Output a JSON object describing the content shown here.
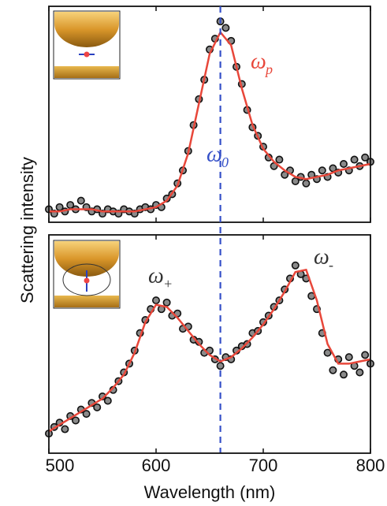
{
  "chart_data": [
    {
      "type": "scatter",
      "xlim": [
        500,
        800
      ],
      "ylim": [
        0,
        1
      ],
      "xticks": [
        500,
        600,
        700,
        800
      ],
      "ylabel": "Scattering intensity",
      "vline": {
        "value": 660,
        "color": "#3550c8"
      },
      "annotations": [
        {
          "text": "ω",
          "sub": "p",
          "color": "#e8473a"
        },
        {
          "text": "ω",
          "sub": "0",
          "color": "#3550c8"
        }
      ],
      "series": [
        {
          "type": "scatter",
          "color": "#8a8a8a",
          "x": [
            500,
            505,
            510,
            515,
            520,
            525,
            530,
            535,
            540,
            545,
            550,
            555,
            560,
            565,
            570,
            575,
            580,
            585,
            590,
            595,
            600,
            605,
            610,
            615,
            620,
            625,
            630,
            635,
            640,
            645,
            650,
            655,
            660,
            665,
            670,
            675,
            680,
            685,
            690,
            695,
            700,
            705,
            710,
            715,
            720,
            725,
            730,
            735,
            740,
            745,
            750,
            755,
            760,
            765,
            770,
            775,
            780,
            785,
            790,
            795,
            800
          ],
          "values": [
            0.06,
            0.04,
            0.07,
            0.05,
            0.08,
            0.06,
            0.1,
            0.07,
            0.05,
            0.06,
            0.04,
            0.06,
            0.05,
            0.04,
            0.06,
            0.05,
            0.04,
            0.06,
            0.07,
            0.06,
            0.08,
            0.07,
            0.11,
            0.13,
            0.18,
            0.24,
            0.33,
            0.45,
            0.57,
            0.66,
            0.8,
            0.85,
            0.93,
            0.9,
            0.84,
            0.72,
            0.64,
            0.52,
            0.44,
            0.4,
            0.35,
            0.3,
            0.26,
            0.29,
            0.22,
            0.24,
            0.19,
            0.21,
            0.18,
            0.22,
            0.2,
            0.24,
            0.21,
            0.25,
            0.23,
            0.27,
            0.24,
            0.29,
            0.26,
            0.3,
            0.28
          ]
        },
        {
          "type": "line",
          "color": "#e8473a",
          "x": [
            500,
            510,
            520,
            530,
            540,
            550,
            560,
            570,
            580,
            590,
            600,
            610,
            620,
            630,
            640,
            650,
            660,
            670,
            680,
            690,
            700,
            710,
            720,
            730,
            740,
            750,
            760,
            770,
            780,
            790,
            800
          ],
          "values": [
            0.05,
            0.05,
            0.06,
            0.06,
            0.06,
            0.05,
            0.05,
            0.05,
            0.05,
            0.06,
            0.07,
            0.1,
            0.17,
            0.32,
            0.55,
            0.78,
            0.88,
            0.82,
            0.62,
            0.45,
            0.34,
            0.28,
            0.24,
            0.21,
            0.2,
            0.21,
            0.22,
            0.24,
            0.25,
            0.26,
            0.27
          ]
        }
      ]
    },
    {
      "type": "scatter",
      "xlim": [
        500,
        800
      ],
      "ylim": [
        0,
        1
      ],
      "xticks": [
        500,
        600,
        700,
        800
      ],
      "xlabel": "Wavelength (nm)",
      "annotations": [
        {
          "text": "ω",
          "sub": "+",
          "color": "#333333"
        },
        {
          "text": "ω",
          "sub": "-",
          "color": "#333333"
        }
      ],
      "series": [
        {
          "type": "scatter",
          "color": "#8a8a8a",
          "x": [
            500,
            505,
            510,
            515,
            520,
            525,
            530,
            535,
            540,
            545,
            550,
            555,
            560,
            565,
            570,
            575,
            580,
            585,
            590,
            595,
            600,
            605,
            610,
            615,
            620,
            625,
            630,
            635,
            640,
            645,
            650,
            655,
            660,
            665,
            670,
            675,
            680,
            685,
            690,
            695,
            700,
            705,
            710,
            715,
            720,
            725,
            730,
            735,
            740,
            745,
            750,
            755,
            760,
            765,
            770,
            775,
            780,
            785,
            790,
            795,
            800
          ],
          "values": [
            0.09,
            0.12,
            0.14,
            0.11,
            0.17,
            0.15,
            0.2,
            0.18,
            0.23,
            0.21,
            0.26,
            0.24,
            0.29,
            0.33,
            0.37,
            0.41,
            0.47,
            0.55,
            0.61,
            0.66,
            0.7,
            0.66,
            0.69,
            0.63,
            0.64,
            0.57,
            0.58,
            0.52,
            0.51,
            0.46,
            0.47,
            0.43,
            0.4,
            0.44,
            0.43,
            0.47,
            0.49,
            0.5,
            0.55,
            0.56,
            0.6,
            0.63,
            0.67,
            0.7,
            0.75,
            0.8,
            0.86,
            0.82,
            0.8,
            0.72,
            0.66,
            0.55,
            0.46,
            0.38,
            0.43,
            0.36,
            0.44,
            0.4,
            0.37,
            0.45,
            0.41
          ]
        },
        {
          "type": "line",
          "color": "#e8473a",
          "x": [
            500,
            510,
            520,
            530,
            540,
            550,
            560,
            570,
            580,
            590,
            600,
            610,
            620,
            630,
            640,
            650,
            660,
            670,
            680,
            690,
            700,
            710,
            720,
            730,
            740,
            750,
            760,
            770,
            780,
            790,
            800
          ],
          "values": [
            0.1,
            0.13,
            0.16,
            0.19,
            0.22,
            0.25,
            0.3,
            0.36,
            0.46,
            0.6,
            0.68,
            0.67,
            0.62,
            0.56,
            0.5,
            0.45,
            0.42,
            0.44,
            0.48,
            0.53,
            0.59,
            0.66,
            0.74,
            0.83,
            0.84,
            0.7,
            0.5,
            0.41,
            0.41,
            0.42,
            0.43
          ]
        }
      ]
    }
  ]
}
